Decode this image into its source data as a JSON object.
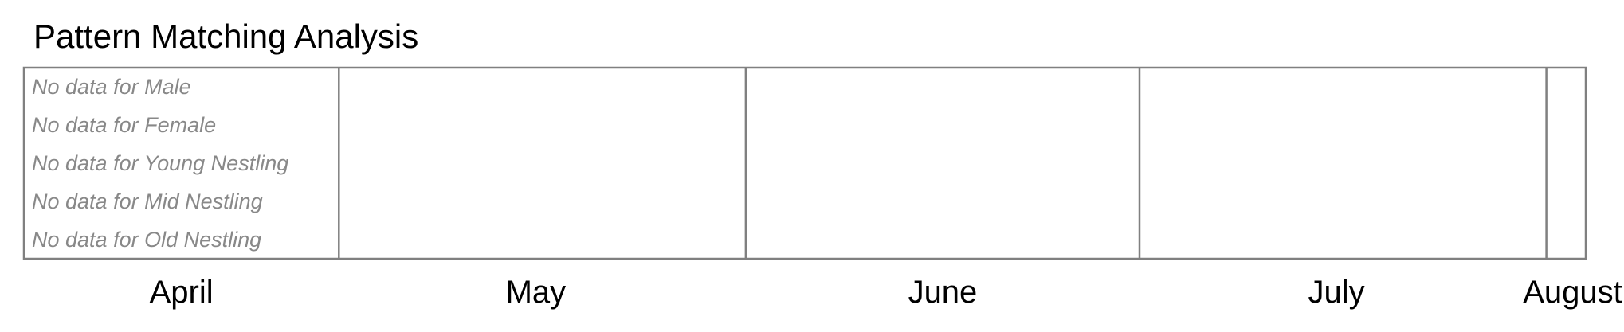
{
  "chart_data": {
    "type": "timeline",
    "title": "Pattern Matching Analysis",
    "rows": [
      {
        "category": "Male",
        "message": "No data for Male"
      },
      {
        "category": "Female",
        "message": "No data for Female"
      },
      {
        "category": "Young Nestling",
        "message": "No data for Young Nestling"
      },
      {
        "category": "Mid Nestling",
        "message": "No data for Mid Nestling"
      },
      {
        "category": "Old Nestling",
        "message": "No data for Old Nestling"
      }
    ],
    "x_start": "2023-04-07",
    "x_end": "2023-08-04",
    "month_boundaries": [
      "2023-05-01",
      "2023-06-01",
      "2023-07-01",
      "2023-08-01"
    ],
    "month_labels": [
      {
        "label": "April",
        "date": "2023-04-19"
      },
      {
        "label": "May",
        "date": "2023-05-16"
      },
      {
        "label": "June",
        "date": "2023-06-16"
      },
      {
        "label": "July",
        "date": "2023-07-16"
      },
      {
        "label": "August",
        "date": "2023-08-03"
      }
    ],
    "grid": true,
    "frame_color": "#808080",
    "message_color": "#888888"
  }
}
